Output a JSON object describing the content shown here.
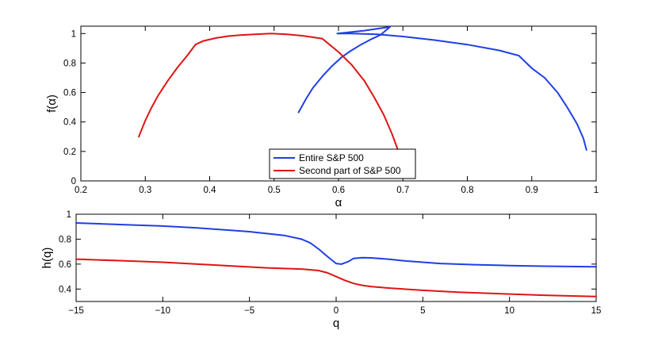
{
  "chart_data": [
    {
      "type": "line",
      "title": "",
      "xlabel": "α",
      "ylabel": "f(α)",
      "xlim": [
        0.2,
        1
      ],
      "ylim": [
        0,
        1.05
      ],
      "xticks": [
        0.2,
        0.3,
        0.4,
        0.5,
        0.6,
        0.7,
        0.8,
        0.9,
        1
      ],
      "xtick_labels": [
        "0.2",
        "0.3",
        "0.4",
        "0.5",
        "0.6",
        "0.7",
        "0.8",
        "0.9",
        "1"
      ],
      "yticks": [
        0,
        0.2,
        0.4,
        0.6,
        0.8,
        1
      ],
      "ytick_labels": [
        "0",
        "0.2",
        "0.4",
        "0.6",
        "0.8",
        "1"
      ],
      "grid": false,
      "legend": {
        "placement": "bottom-center",
        "entries": [
          "Entire S&P 500",
          "Second part of S&P 500"
        ]
      },
      "series": [
        {
          "name": "Entire S&P 500",
          "color": "#1f3fe6",
          "x": [
            0.538,
            0.55,
            0.56,
            0.575,
            0.59,
            0.605,
            0.62,
            0.635,
            0.65,
            0.665,
            0.68,
            0.64,
            0.598,
            0.62,
            0.66,
            0.7,
            0.75,
            0.8,
            0.85,
            0.88,
            0.9,
            0.92,
            0.94,
            0.955,
            0.97,
            0.98,
            0.985
          ],
          "y": [
            0.465,
            0.56,
            0.63,
            0.71,
            0.78,
            0.84,
            0.885,
            0.925,
            0.96,
            0.99,
            1.045,
            1.02,
            1.0,
            1.0,
            0.995,
            0.98,
            0.955,
            0.925,
            0.885,
            0.85,
            0.765,
            0.7,
            0.6,
            0.5,
            0.39,
            0.29,
            0.21
          ]
        },
        {
          "name": "Second part of S&P 500",
          "color": "#e01414",
          "x": [
            0.29,
            0.3,
            0.31,
            0.32,
            0.335,
            0.35,
            0.365,
            0.378,
            0.39,
            0.41,
            0.43,
            0.45,
            0.47,
            0.495,
            0.52,
            0.545,
            0.575,
            0.6,
            0.62,
            0.64,
            0.655,
            0.67,
            0.683,
            0.693
          ],
          "y": [
            0.3,
            0.41,
            0.5,
            0.58,
            0.68,
            0.77,
            0.85,
            0.925,
            0.95,
            0.97,
            0.983,
            0.99,
            0.995,
            1.0,
            0.995,
            0.985,
            0.965,
            0.875,
            0.79,
            0.68,
            0.57,
            0.45,
            0.32,
            0.2
          ]
        }
      ]
    },
    {
      "type": "line",
      "title": "",
      "xlabel": "q",
      "ylabel": "h(q)",
      "xlim": [
        -15,
        15
      ],
      "ylim": [
        0.3,
        1
      ],
      "xticks": [
        -15,
        -10,
        -5,
        0,
        5,
        10,
        15
      ],
      "xtick_labels": [
        "−15",
        "−10",
        "−5",
        "0",
        "5",
        "10",
        "15"
      ],
      "yticks": [
        0.4,
        0.6,
        0.8,
        1
      ],
      "ytick_labels": [
        "0.4",
        "0.6",
        "0.8",
        "1"
      ],
      "grid": false,
      "series": [
        {
          "name": "Entire S&P 500",
          "color": "#1f3fe6",
          "x": [
            -15,
            -12,
            -10,
            -8,
            -6,
            -5,
            -4,
            -3,
            -2,
            -1.5,
            -1,
            -0.5,
            0,
            0.3,
            0.7,
            1,
            1.5,
            2,
            3,
            4,
            6,
            8,
            10,
            12,
            15
          ],
          "y": [
            0.93,
            0.915,
            0.905,
            0.89,
            0.87,
            0.86,
            0.845,
            0.83,
            0.8,
            0.77,
            0.72,
            0.66,
            0.605,
            0.6,
            0.62,
            0.645,
            0.652,
            0.65,
            0.64,
            0.625,
            0.605,
            0.595,
            0.588,
            0.583,
            0.578
          ]
        },
        {
          "name": "Second part of S&P 500",
          "color": "#e01414",
          "x": [
            -15,
            -12,
            -10,
            -8,
            -6,
            -4,
            -2,
            -1,
            -0.5,
            0,
            0.5,
            1,
            1.5,
            2,
            3,
            5,
            7,
            10,
            12,
            15
          ],
          "y": [
            0.64,
            0.625,
            0.615,
            0.6,
            0.585,
            0.57,
            0.56,
            0.548,
            0.53,
            0.5,
            0.47,
            0.445,
            0.43,
            0.42,
            0.408,
            0.39,
            0.375,
            0.36,
            0.35,
            0.34
          ]
        }
      ]
    }
  ]
}
